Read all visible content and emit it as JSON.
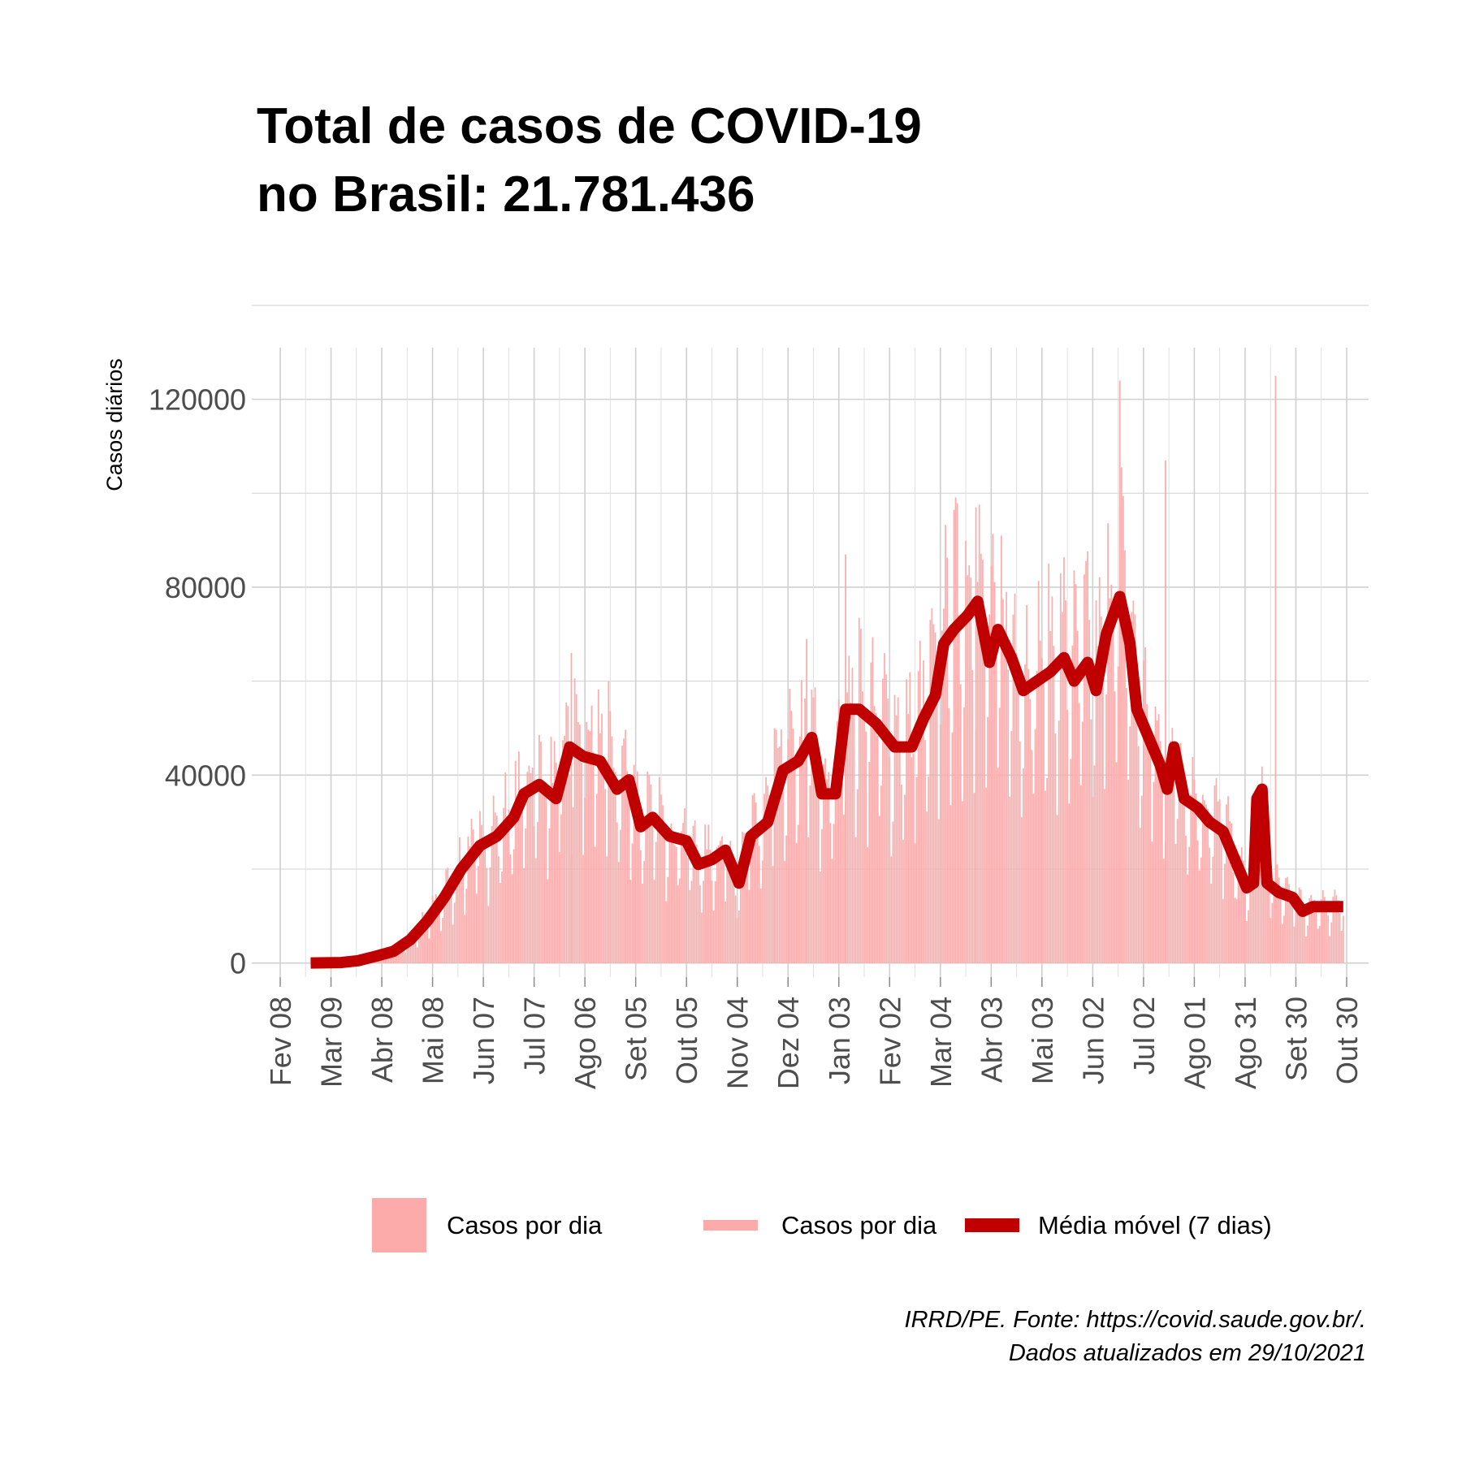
{
  "chart_data": {
    "type": "bar",
    "title_lines": [
      "Total de casos de COVID-19",
      "no Brasil: 21.781.436"
    ],
    "ylabel": "Casos diários",
    "xlabel": "",
    "y_ticks": [
      0,
      40000,
      80000,
      120000
    ],
    "ylim": [
      -3000,
      131000
    ],
    "x_tick_labels": [
      "Fev 08",
      "Mar 09",
      "Abr 08",
      "Mai 08",
      "Jun 07",
      "Jul 07",
      "Ago 06",
      "Set 05",
      "Out 05",
      "Nov 04",
      "Dez 04",
      "Jan 03",
      "Fev 02",
      "Mar 04",
      "Abr 03",
      "Mai 03",
      "Jun 02",
      "Jul 02",
      "Ago 01",
      "Ago 31",
      "Set 30",
      "Out 30"
    ],
    "grid": true,
    "legend_position": "bottom",
    "legend": [
      {
        "label": "Casos por dia",
        "key": "box",
        "color": "#fcaaaa"
      },
      {
        "label": "Casos por dia",
        "key": "bar",
        "color": "#fcaaaa"
      },
      {
        "label": "Média móvel (7 dias)",
        "key": "line",
        "color": "#c00000"
      }
    ],
    "caption_lines": [
      "IRRD/PE. Fonte: https://covid.saude.gov.br/.",
      "Dados atualizados em  29/10/2021"
    ],
    "series": [
      {
        "name": "Média móvel (7 dias)",
        "kind": "line",
        "color": "#c00000",
        "points": [
          [
            "2020-02-26",
            0
          ],
          [
            "2020-03-15",
            100
          ],
          [
            "2020-03-25",
            500
          ],
          [
            "2020-04-05",
            1500
          ],
          [
            "2020-04-15",
            2500
          ],
          [
            "2020-04-25",
            5000
          ],
          [
            "2020-05-05",
            9000
          ],
          [
            "2020-05-15",
            14000
          ],
          [
            "2020-05-25",
            20000
          ],
          [
            "2020-06-05",
            25000
          ],
          [
            "2020-06-15",
            27000
          ],
          [
            "2020-06-25",
            31000
          ],
          [
            "2020-07-01",
            36000
          ],
          [
            "2020-07-10",
            38000
          ],
          [
            "2020-07-20",
            35000
          ],
          [
            "2020-07-28",
            46000
          ],
          [
            "2020-08-05",
            44000
          ],
          [
            "2020-08-15",
            43000
          ],
          [
            "2020-08-25",
            37000
          ],
          [
            "2020-09-01",
            39000
          ],
          [
            "2020-09-08",
            29000
          ],
          [
            "2020-09-15",
            31000
          ],
          [
            "2020-09-25",
            27000
          ],
          [
            "2020-10-05",
            26000
          ],
          [
            "2020-10-12",
            21000
          ],
          [
            "2020-10-20",
            22000
          ],
          [
            "2020-10-28",
            24000
          ],
          [
            "2020-11-05",
            17000
          ],
          [
            "2020-11-12",
            27000
          ],
          [
            "2020-11-22",
            30000
          ],
          [
            "2020-12-01",
            41000
          ],
          [
            "2020-12-10",
            43000
          ],
          [
            "2020-12-18",
            48000
          ],
          [
            "2020-12-24",
            36000
          ],
          [
            "2021-01-01",
            36000
          ],
          [
            "2021-01-07",
            54000
          ],
          [
            "2021-01-15",
            54000
          ],
          [
            "2021-01-25",
            51000
          ],
          [
            "2021-02-05",
            46000
          ],
          [
            "2021-02-15",
            46000
          ],
          [
            "2021-02-22",
            52000
          ],
          [
            "2021-03-01",
            57000
          ],
          [
            "2021-03-06",
            68000
          ],
          [
            "2021-03-12",
            71000
          ],
          [
            "2021-03-20",
            74000
          ],
          [
            "2021-03-26",
            77000
          ],
          [
            "2021-04-02",
            64000
          ],
          [
            "2021-04-07",
            71000
          ],
          [
            "2021-04-15",
            65000
          ],
          [
            "2021-04-22",
            58000
          ],
          [
            "2021-04-30",
            60000
          ],
          [
            "2021-05-08",
            62000
          ],
          [
            "2021-05-16",
            65000
          ],
          [
            "2021-05-22",
            60000
          ],
          [
            "2021-05-30",
            64000
          ],
          [
            "2021-06-04",
            58000
          ],
          [
            "2021-06-10",
            70000
          ],
          [
            "2021-06-18",
            78000
          ],
          [
            "2021-06-24",
            68000
          ],
          [
            "2021-06-28",
            54000
          ],
          [
            "2021-07-05",
            48000
          ],
          [
            "2021-07-12",
            42000
          ],
          [
            "2021-07-16",
            37000
          ],
          [
            "2021-07-20",
            46000
          ],
          [
            "2021-07-26",
            35000
          ],
          [
            "2021-08-03",
            33000
          ],
          [
            "2021-08-10",
            30000
          ],
          [
            "2021-08-18",
            28000
          ],
          [
            "2021-08-25",
            22000
          ],
          [
            "2021-09-01",
            16000
          ],
          [
            "2021-09-05",
            17000
          ],
          [
            "2021-09-07",
            35000
          ],
          [
            "2021-09-10",
            37000
          ],
          [
            "2021-09-13",
            17000
          ],
          [
            "2021-09-20",
            15000
          ],
          [
            "2021-09-28",
            14000
          ],
          [
            "2021-10-04",
            11000
          ],
          [
            "2021-10-10",
            12000
          ],
          [
            "2021-10-20",
            12000
          ],
          [
            "2021-10-28",
            12000
          ]
        ]
      },
      {
        "name": "Casos por dia",
        "kind": "bar",
        "color": "#fcaaaa",
        "spikes": [
          [
            "2020-07-29",
            66000
          ],
          [
            "2020-08-20",
            60000
          ],
          [
            "2020-11-26",
            50000
          ],
          [
            "2020-12-15",
            69000
          ],
          [
            "2021-01-07",
            87000
          ],
          [
            "2021-03-25",
            97000
          ],
          [
            "2021-06-18",
            124000
          ],
          [
            "2021-07-15",
            107000
          ],
          [
            "2021-09-18",
            125000
          ]
        ]
      }
    ]
  }
}
